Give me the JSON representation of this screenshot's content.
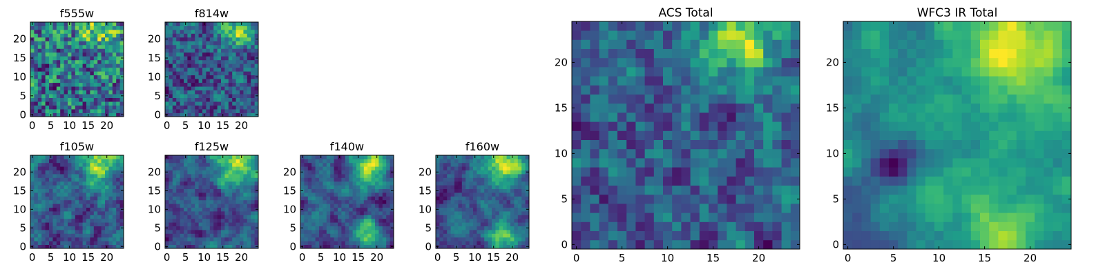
{
  "chart_data": [
    {
      "type": "heatmap",
      "title": "f555w",
      "grid": [
        25,
        25
      ],
      "xlim": [
        0,
        25
      ],
      "ylim": [
        0,
        25
      ],
      "xticks": [
        0,
        5,
        10,
        15,
        20
      ],
      "yticks": [
        0,
        5,
        10,
        15,
        20
      ],
      "colormap": "viridis",
      "seed": 11,
      "smooth": 0.15,
      "bright": [
        [
          18,
          22,
          4,
          0.4
        ]
      ],
      "dark": []
    },
    {
      "type": "heatmap",
      "title": "f814w",
      "grid": [
        25,
        25
      ],
      "xlim": [
        0,
        25
      ],
      "ylim": [
        0,
        25
      ],
      "xticks": [
        0,
        5,
        10,
        15,
        20
      ],
      "yticks": [
        0,
        5,
        10,
        15,
        20
      ],
      "colormap": "viridis",
      "seed": 23,
      "smooth": 0.3,
      "bright": [
        [
          19,
          22,
          3,
          0.6
        ]
      ],
      "dark": []
    },
    {
      "type": "heatmap",
      "title": "f105w",
      "grid": [
        25,
        25
      ],
      "xlim": [
        0,
        25
      ],
      "ylim": [
        0,
        25
      ],
      "xticks": [
        0,
        5,
        10,
        15,
        20
      ],
      "yticks": [
        0,
        5,
        10,
        15,
        20
      ],
      "colormap": "viridis",
      "seed": 37,
      "smooth": 0.55,
      "bright": [
        [
          18,
          22,
          4,
          0.5
        ]
      ],
      "dark": []
    },
    {
      "type": "heatmap",
      "title": "f125w",
      "grid": [
        25,
        25
      ],
      "xlim": [
        0,
        25
      ],
      "ylim": [
        0,
        25
      ],
      "xticks": [
        0,
        5,
        10,
        15,
        20
      ],
      "yticks": [
        0,
        5,
        10,
        15,
        20
      ],
      "colormap": "viridis",
      "seed": 41,
      "smooth": 0.6,
      "bright": [
        [
          18,
          22,
          4,
          0.5
        ]
      ],
      "dark": []
    },
    {
      "type": "heatmap",
      "title": "f140w",
      "grid": [
        25,
        25
      ],
      "xlim": [
        0,
        25
      ],
      "ylim": [
        0,
        25
      ],
      "xticks": [
        0,
        5,
        10,
        15,
        20
      ],
      "yticks": [
        0,
        5,
        10,
        15,
        20
      ],
      "colormap": "viridis",
      "seed": 53,
      "smooth": 0.6,
      "bright": [
        [
          18,
          22,
          4,
          0.6
        ],
        [
          18,
          2,
          3,
          0.5
        ]
      ],
      "dark": []
    },
    {
      "type": "heatmap",
      "title": "f160w",
      "grid": [
        25,
        25
      ],
      "xlim": [
        0,
        25
      ],
      "ylim": [
        0,
        25
      ],
      "xticks": [
        0,
        5,
        10,
        15,
        20
      ],
      "yticks": [
        0,
        5,
        10,
        15,
        20
      ],
      "colormap": "viridis",
      "seed": 67,
      "smooth": 0.6,
      "bright": [
        [
          18,
          22,
          4,
          0.6
        ],
        [
          18,
          2,
          3,
          0.5
        ]
      ],
      "dark": []
    },
    {
      "type": "heatmap",
      "title": "ACS Total",
      "grid": [
        25,
        25
      ],
      "xlim": [
        0,
        25
      ],
      "ylim": [
        0,
        25
      ],
      "xticks": [
        0,
        5,
        10,
        15,
        20
      ],
      "yticks": [
        0,
        5,
        10,
        15,
        20
      ],
      "colormap": "viridis",
      "seed": 79,
      "smooth": 0.35,
      "bright": [
        [
          18,
          22,
          3,
          0.6
        ]
      ],
      "dark": []
    },
    {
      "type": "heatmap",
      "title": "WFC3 IR Total",
      "grid": [
        25,
        25
      ],
      "xlim": [
        0,
        25
      ],
      "ylim": [
        0,
        25
      ],
      "xticks": [
        0,
        5,
        10,
        15,
        20
      ],
      "yticks": [
        0,
        5,
        10,
        15,
        20
      ],
      "colormap": "viridis",
      "seed": 97,
      "smooth": 0.65,
      "bright": [
        [
          18,
          22,
          4,
          0.7
        ],
        [
          17,
          2,
          3,
          0.5
        ]
      ],
      "dark": [
        [
          5,
          9,
          2,
          0.6
        ],
        [
          0,
          4,
          2,
          0.5
        ]
      ]
    }
  ]
}
